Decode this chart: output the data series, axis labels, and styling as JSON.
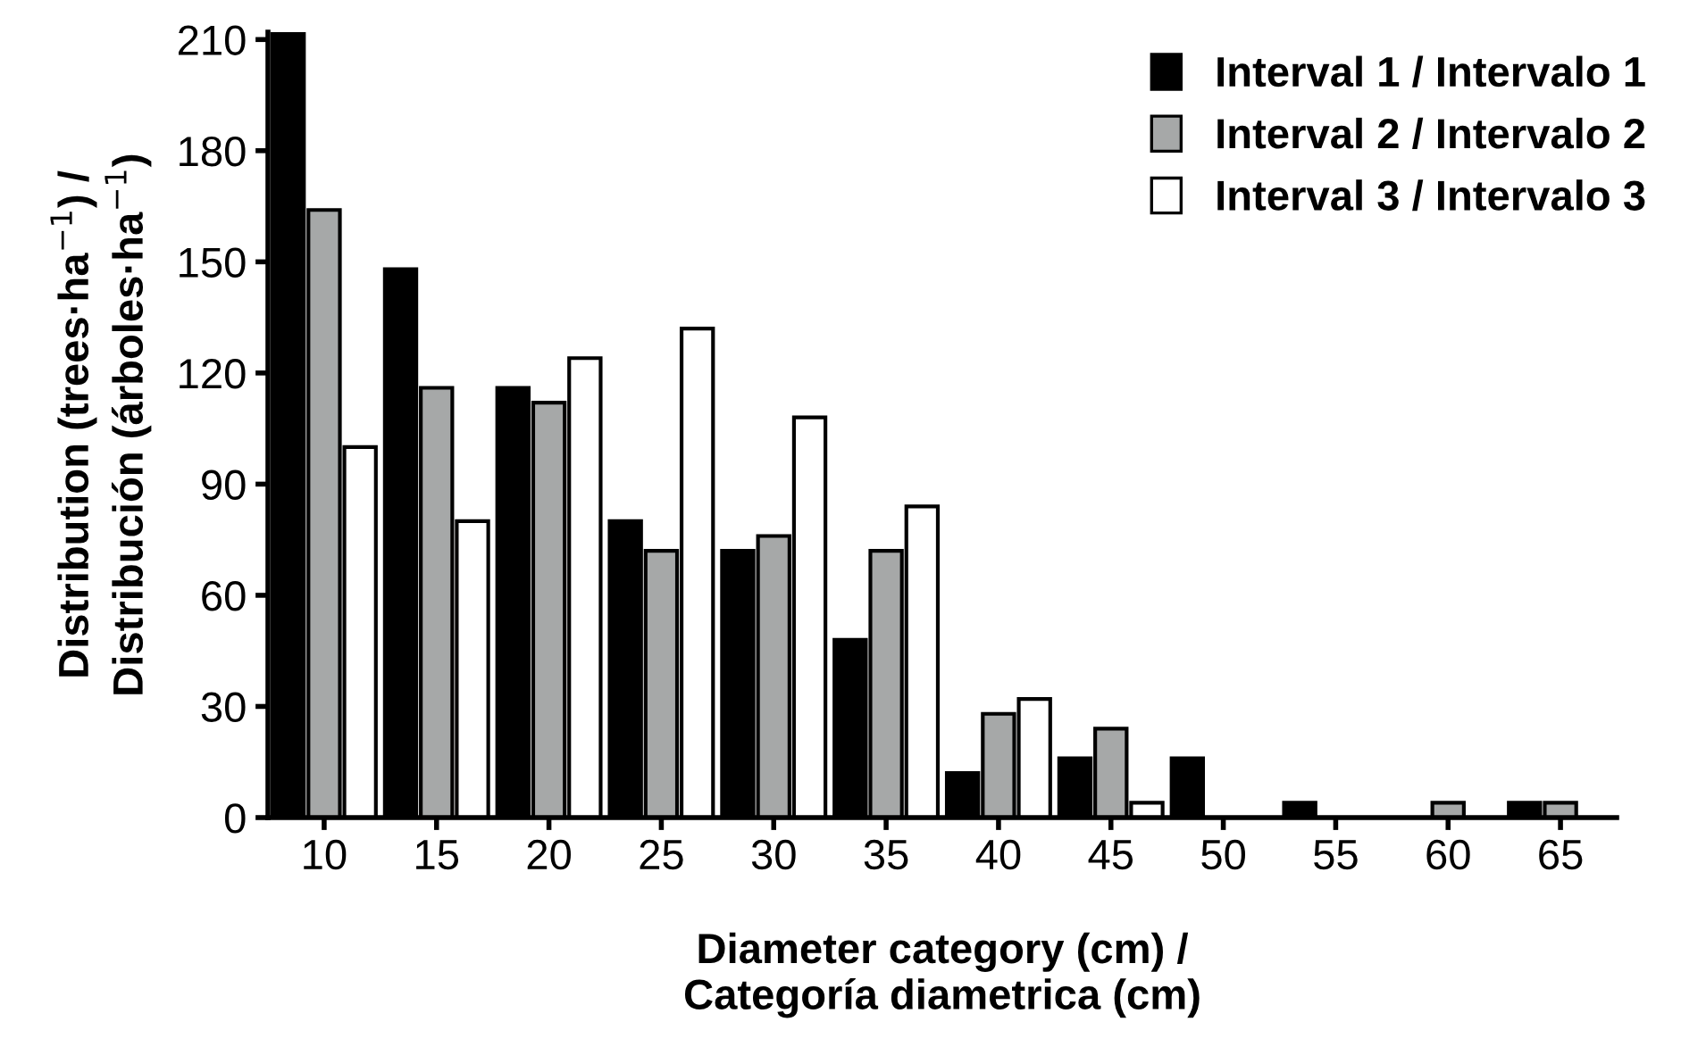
{
  "chart_data": {
    "type": "bar",
    "xlabel": "Diameter category (cm) /\nCategoría diametrica (cm)",
    "ylabel": "Distribution (trees·ha$^{−1}$) /\nDistribución (árboles·ha$^{−1}$)",
    "categories": [
      "10",
      "15",
      "20",
      "25",
      "30",
      "35",
      "40",
      "45",
      "50",
      "55",
      "60",
      "65"
    ],
    "series": [
      {
        "name": "Interval 1 / Intervalo 1",
        "color": "#000000",
        "values": [
          212,
          148,
          116,
          80,
          72,
          48,
          12,
          16,
          16,
          4,
          0,
          4
        ]
      },
      {
        "name": "Interval 2 / Intervalo 2",
        "color": "#a6a8a8",
        "values": [
          164,
          116,
          112,
          72,
          76,
          72,
          28,
          24,
          0,
          0,
          4,
          4
        ]
      },
      {
        "name": "Interval 3 / Intervalo 3",
        "color": "#ffffff",
        "values": [
          100,
          80,
          124,
          132,
          108,
          84,
          32,
          4,
          0,
          0,
          0,
          0
        ]
      }
    ],
    "ylim": [
      0,
      212
    ],
    "yticks": [
      0,
      30,
      60,
      90,
      120,
      150,
      180,
      210
    ],
    "grid": false,
    "legend": "top right"
  }
}
